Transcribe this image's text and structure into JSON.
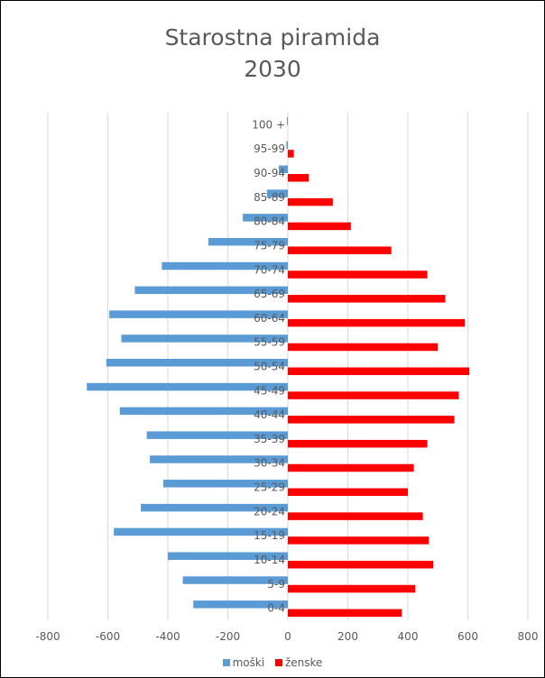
{
  "chart_data": {
    "type": "bar",
    "orientation": "horizontal",
    "title_lines": [
      "Starostna piramida",
      "2030"
    ],
    "categories": [
      "100 +",
      "95-99",
      "90-94",
      "85-89",
      "80-84",
      "75-79",
      "70-74",
      "65-69",
      "60-64",
      "55-59",
      "50-54",
      "45-49",
      "40-44",
      "35-39",
      "30-34",
      "25-29",
      "20-24",
      "15-19",
      "10-14",
      "5-9",
      "0-4"
    ],
    "series": [
      {
        "name": "moški",
        "color": "#5b9bd5",
        "values": [
          -3,
          -5,
          -30,
          -70,
          -150,
          -265,
          -420,
          -510,
          -595,
          -555,
          -605,
          -670,
          -560,
          -470,
          -460,
          -415,
          -490,
          -580,
          -400,
          -350,
          -315
        ]
      },
      {
        "name": "ženske",
        "color": "#ff0000",
        "values": [
          0,
          20,
          70,
          150,
          210,
          345,
          465,
          525,
          590,
          500,
          605,
          570,
          555,
          465,
          420,
          400,
          450,
          470,
          485,
          425,
          380
        ]
      }
    ],
    "xlim": [
      -800,
      800
    ],
    "xticks": [
      -800,
      -600,
      -400,
      -200,
      0,
      200,
      400,
      600,
      800
    ],
    "xtick_labels": [
      "-800",
      "-600",
      "-400",
      "-200",
      "0",
      "200",
      "400",
      "600",
      "800"
    ],
    "grid": true,
    "legend_position": "bottom"
  }
}
